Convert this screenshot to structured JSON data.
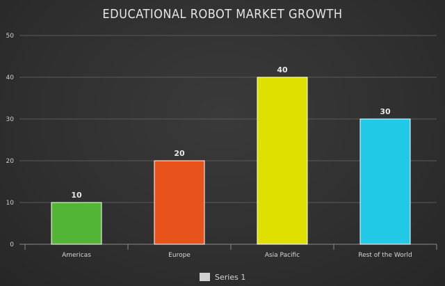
{
  "chart_data": {
    "type": "bar",
    "title": "EDUCATIONAL ROBOT MARKET GROWTH",
    "categories": [
      "Americas",
      "Europe",
      "Asia Pacific",
      "Rest of the World"
    ],
    "series": [
      {
        "name": "Series 1",
        "values": [
          10,
          20,
          40,
          30
        ]
      }
    ],
    "bar_colors": [
      "#52b535",
      "#e8531c",
      "#dfe000",
      "#22c9e6"
    ],
    "legend_color": "#d0d0d0",
    "ylim": [
      0,
      50
    ],
    "yticks": [
      0,
      10,
      20,
      30,
      40,
      50
    ],
    "grid": true,
    "legend_position": "bottom",
    "xlabel": "",
    "ylabel": ""
  }
}
